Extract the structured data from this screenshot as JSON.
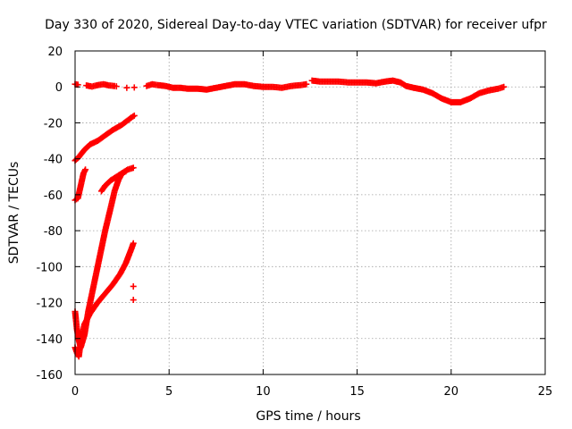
{
  "chart_data": {
    "type": "scatter",
    "title": "Day 330 of 2020, Sidereal Day-to-day VTEC variation (SDTVAR) for receiver ufpr",
    "xlabel": "GPS time / hours",
    "ylabel": "SDTVAR / TECUs",
    "xlim": [
      0,
      25
    ],
    "ylim": [
      -160,
      20
    ],
    "xticks": [
      "0",
      "5",
      "10",
      "15",
      "20",
      "25"
    ],
    "yticks": [
      "-160",
      "-140",
      "-120",
      "-100",
      "-80",
      "-60",
      "-40",
      "-20",
      "0",
      "20"
    ],
    "grid": true,
    "marker": "+",
    "color": "#ff0000",
    "segments": [
      {
        "points": [
          [
            0.0,
            1.5
          ],
          [
            0.15,
            1.2
          ]
        ]
      },
      {
        "points": [
          [
            0.6,
            0.8
          ],
          [
            0.9,
            0.2
          ],
          [
            1.2,
            1.0
          ],
          [
            1.5,
            1.5
          ],
          [
            1.8,
            0.8
          ],
          [
            2.1,
            0.5
          ],
          [
            2.2,
            0.3
          ]
        ]
      },
      {
        "points": [
          [
            2.75,
            -0.5
          ]
        ]
      },
      {
        "points": [
          [
            3.15,
            -0.3
          ]
        ]
      },
      {
        "points": [
          [
            3.8,
            0.5
          ],
          [
            4.1,
            1.5
          ],
          [
            4.4,
            1.0
          ],
          [
            4.8,
            0.5
          ],
          [
            5.2,
            -0.5
          ],
          [
            5.6,
            -0.5
          ],
          [
            6.0,
            -1.0
          ],
          [
            6.5,
            -1.0
          ],
          [
            7.0,
            -1.5
          ],
          [
            7.5,
            -0.5
          ],
          [
            8.0,
            0.5
          ],
          [
            8.5,
            1.5
          ],
          [
            9.0,
            1.5
          ],
          [
            9.5,
            0.5
          ],
          [
            10.0,
            0.0
          ],
          [
            10.5,
            0.0
          ],
          [
            11.0,
            -0.5
          ],
          [
            11.5,
            0.5
          ],
          [
            12.0,
            1.0
          ],
          [
            12.3,
            1.5
          ]
        ]
      },
      {
        "points": [
          [
            12.6,
            3.5
          ],
          [
            13.0,
            3.0
          ],
          [
            13.5,
            3.0
          ],
          [
            14.0,
            3.0
          ],
          [
            14.5,
            2.5
          ],
          [
            15.0,
            2.5
          ],
          [
            15.5,
            2.5
          ],
          [
            16.0,
            2.0
          ],
          [
            16.5,
            3.0
          ],
          [
            16.9,
            3.5
          ],
          [
            17.3,
            2.5
          ],
          [
            17.6,
            0.5
          ],
          [
            18.0,
            -0.5
          ],
          [
            18.5,
            -1.5
          ],
          [
            19.0,
            -3.5
          ],
          [
            19.5,
            -6.5
          ],
          [
            20.0,
            -8.5
          ],
          [
            20.5,
            -8.5
          ],
          [
            21.0,
            -6.5
          ],
          [
            21.5,
            -3.5
          ],
          [
            22.0,
            -2.0
          ],
          [
            22.5,
            -1.0
          ],
          [
            22.8,
            0.0
          ]
        ]
      },
      {
        "points": [
          [
            0.0,
            -41
          ],
          [
            0.2,
            -39
          ],
          [
            0.5,
            -35
          ],
          [
            0.8,
            -32
          ],
          [
            1.2,
            -30
          ],
          [
            1.6,
            -27
          ],
          [
            2.0,
            -24
          ],
          [
            2.5,
            -21
          ],
          [
            3.0,
            -17
          ],
          [
            3.15,
            -16
          ]
        ]
      },
      {
        "points": [
          [
            0.0,
            -63
          ],
          [
            0.15,
            -62
          ],
          [
            0.3,
            -55
          ],
          [
            0.45,
            -48
          ],
          [
            0.55,
            -46
          ]
        ]
      },
      {
        "points": [
          [
            1.4,
            -58
          ],
          [
            1.6,
            -55
          ],
          [
            1.9,
            -52
          ],
          [
            2.2,
            -50
          ],
          [
            2.5,
            -48
          ],
          [
            2.8,
            -46
          ],
          [
            3.1,
            -45
          ]
        ]
      },
      {
        "points": [
          [
            0.0,
            -125
          ],
          [
            0.1,
            -135
          ],
          [
            0.2,
            -141
          ],
          [
            0.3,
            -145
          ],
          [
            0.5,
            -138
          ],
          [
            0.7,
            -125
          ],
          [
            1.0,
            -110
          ],
          [
            1.3,
            -95
          ],
          [
            1.6,
            -80
          ],
          [
            1.9,
            -67
          ],
          [
            2.1,
            -58
          ],
          [
            2.3,
            -52
          ],
          [
            2.5,
            -48
          ],
          [
            2.7,
            -47
          ]
        ]
      },
      {
        "points": [
          [
            0.0,
            -145
          ],
          [
            0.1,
            -148
          ],
          [
            0.2,
            -150
          ],
          [
            0.3,
            -142
          ],
          [
            0.5,
            -132
          ],
          [
            0.8,
            -126
          ],
          [
            1.2,
            -120
          ],
          [
            1.6,
            -115
          ],
          [
            2.0,
            -110
          ],
          [
            2.4,
            -104
          ],
          [
            2.7,
            -98
          ],
          [
            3.0,
            -90
          ],
          [
            3.1,
            -87
          ]
        ]
      },
      {
        "points": [
          [
            3.1,
            -111
          ]
        ]
      },
      {
        "points": [
          [
            3.1,
            -118.5
          ]
        ]
      }
    ]
  }
}
